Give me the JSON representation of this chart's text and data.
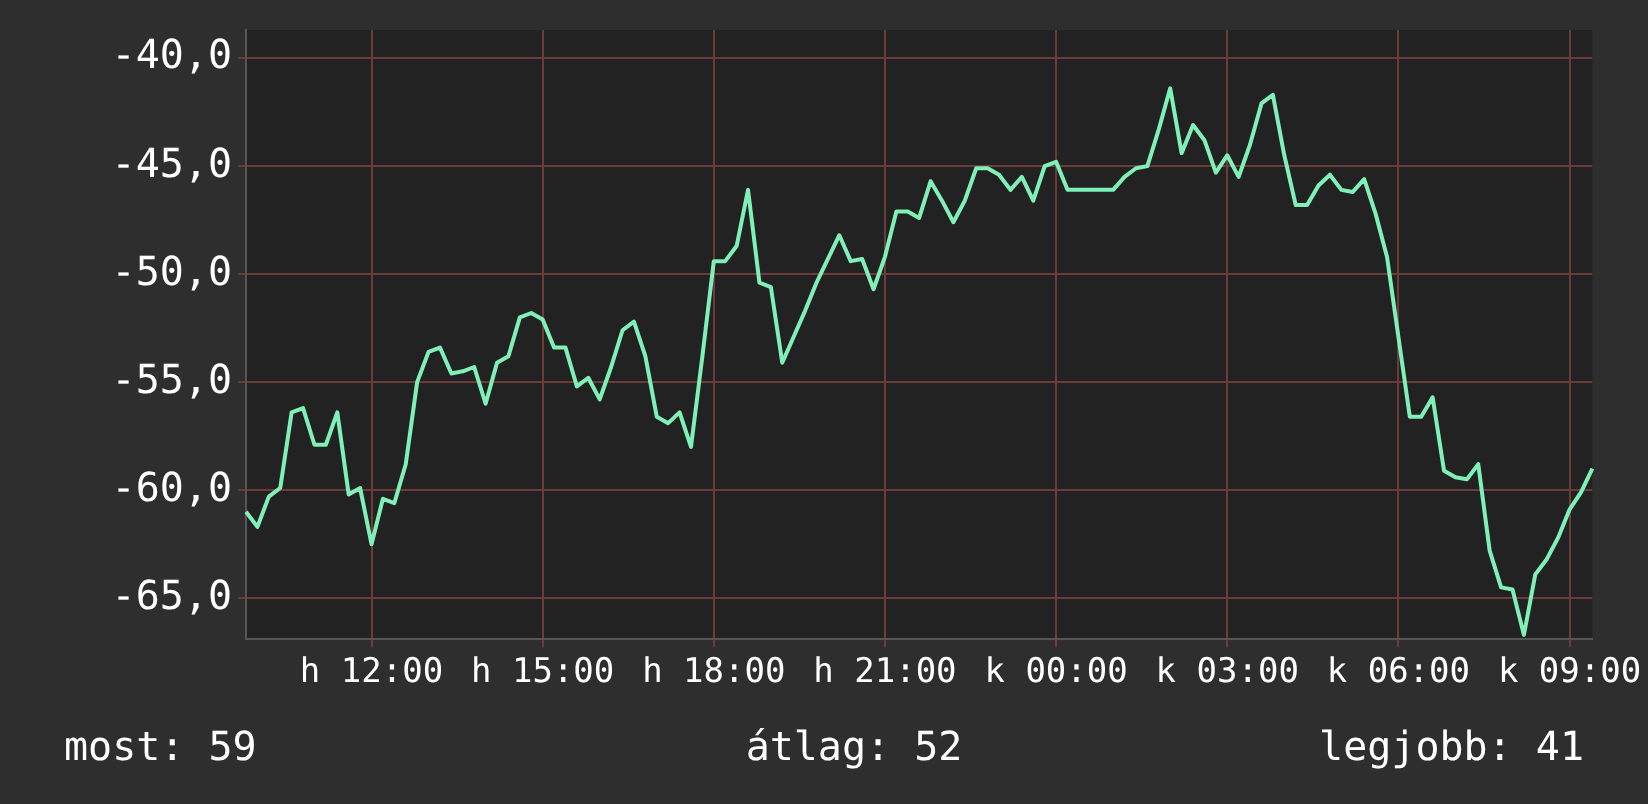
{
  "chart_data": {
    "type": "line",
    "categories": [
      null,
      null,
      null,
      null,
      null,
      null,
      null,
      null,
      null,
      null,
      null,
      "h 12:00",
      null,
      null,
      null,
      null,
      null,
      null,
      null,
      null,
      null,
      null,
      null,
      null,
      null,
      null,
      "h 15:00",
      null,
      null,
      null,
      null,
      null,
      null,
      null,
      null,
      null,
      null,
      null,
      null,
      null,
      null,
      "h 18:00",
      null,
      null,
      null,
      null,
      null,
      null,
      null,
      null,
      null,
      null,
      null,
      null,
      null,
      null,
      "h 21:00",
      null,
      null,
      null,
      null,
      null,
      null,
      null,
      null,
      null,
      null,
      null,
      null,
      null,
      null,
      "k 00:00",
      null,
      null,
      null,
      null,
      null,
      null,
      null,
      null,
      null,
      null,
      null,
      null,
      null,
      null,
      "k 03:00",
      null,
      null,
      null,
      null,
      null,
      null,
      null,
      null,
      null,
      null,
      null,
      null,
      null,
      null,
      "k 06:00",
      null,
      null,
      null,
      null,
      null,
      null,
      null,
      null,
      null,
      null,
      null,
      null,
      null,
      null,
      "k 09:00",
      null,
      null
    ],
    "series": [
      {
        "color": "#7ef0b8",
        "values": [
          -61.0,
          -61.7,
          -60.3,
          -59.9,
          -56.4,
          -56.2,
          -57.9,
          -57.9,
          -56.4,
          -60.2,
          -59.9,
          -62.5,
          -60.4,
          -60.6,
          -58.8,
          -55.0,
          -53.6,
          -53.4,
          -54.6,
          -54.5,
          -54.3,
          -56.0,
          -54.1,
          -53.8,
          -52.0,
          -51.8,
          -52.1,
          -53.4,
          -53.4,
          -55.2,
          -54.8,
          -55.8,
          -54.3,
          -52.6,
          -52.2,
          -53.8,
          -56.6,
          -56.9,
          -56.4,
          -58.0,
          -53.8,
          -49.4,
          -49.4,
          -48.7,
          -46.1,
          -50.4,
          -50.6,
          -54.1,
          -52.9,
          -51.7,
          -50.4,
          -49.3,
          -48.2,
          -49.4,
          -49.3,
          -50.7,
          -49.2,
          -47.1,
          -47.1,
          -47.4,
          -45.7,
          -46.6,
          -47.6,
          -46.6,
          -45.1,
          -45.1,
          -45.4,
          -46.1,
          -45.5,
          -46.6,
          -45.0,
          -44.8,
          -46.1,
          -46.1,
          -46.1,
          -46.1,
          -46.1,
          -45.5,
          -45.1,
          -45.0,
          -43.3,
          -41.4,
          -44.4,
          -43.1,
          -43.8,
          -45.3,
          -44.5,
          -45.5,
          -44.0,
          -42.1,
          -41.7,
          -44.5,
          -46.8,
          -46.8,
          -45.9,
          -45.4,
          -46.1,
          -46.2,
          -45.6,
          -47.2,
          -49.2,
          -52.9,
          -56.6,
          -56.6,
          -55.7,
          -59.1,
          -59.4,
          -59.5,
          -58.8,
          -62.8,
          -64.5,
          -64.6,
          -66.7,
          -63.9,
          -63.2,
          -62.2,
          -60.9,
          -60.1,
          -59.0
        ]
      }
    ],
    "ylim": [
      -66.9,
      -38.7
    ],
    "yticks": [
      {
        "value": -65,
        "label": "-65,0"
      },
      {
        "value": -60,
        "label": "-60,0"
      },
      {
        "value": -55,
        "label": "-55,0"
      },
      {
        "value": -50,
        "label": "-50,0"
      },
      {
        "value": -45,
        "label": "-45,0"
      },
      {
        "value": -40,
        "label": "-40,0"
      }
    ],
    "grid": true,
    "legend": false,
    "marker": "none",
    "line_style": "solid",
    "annotations": [
      "most: 59",
      "átlag: 52",
      "legjobb: 41"
    ]
  }
}
